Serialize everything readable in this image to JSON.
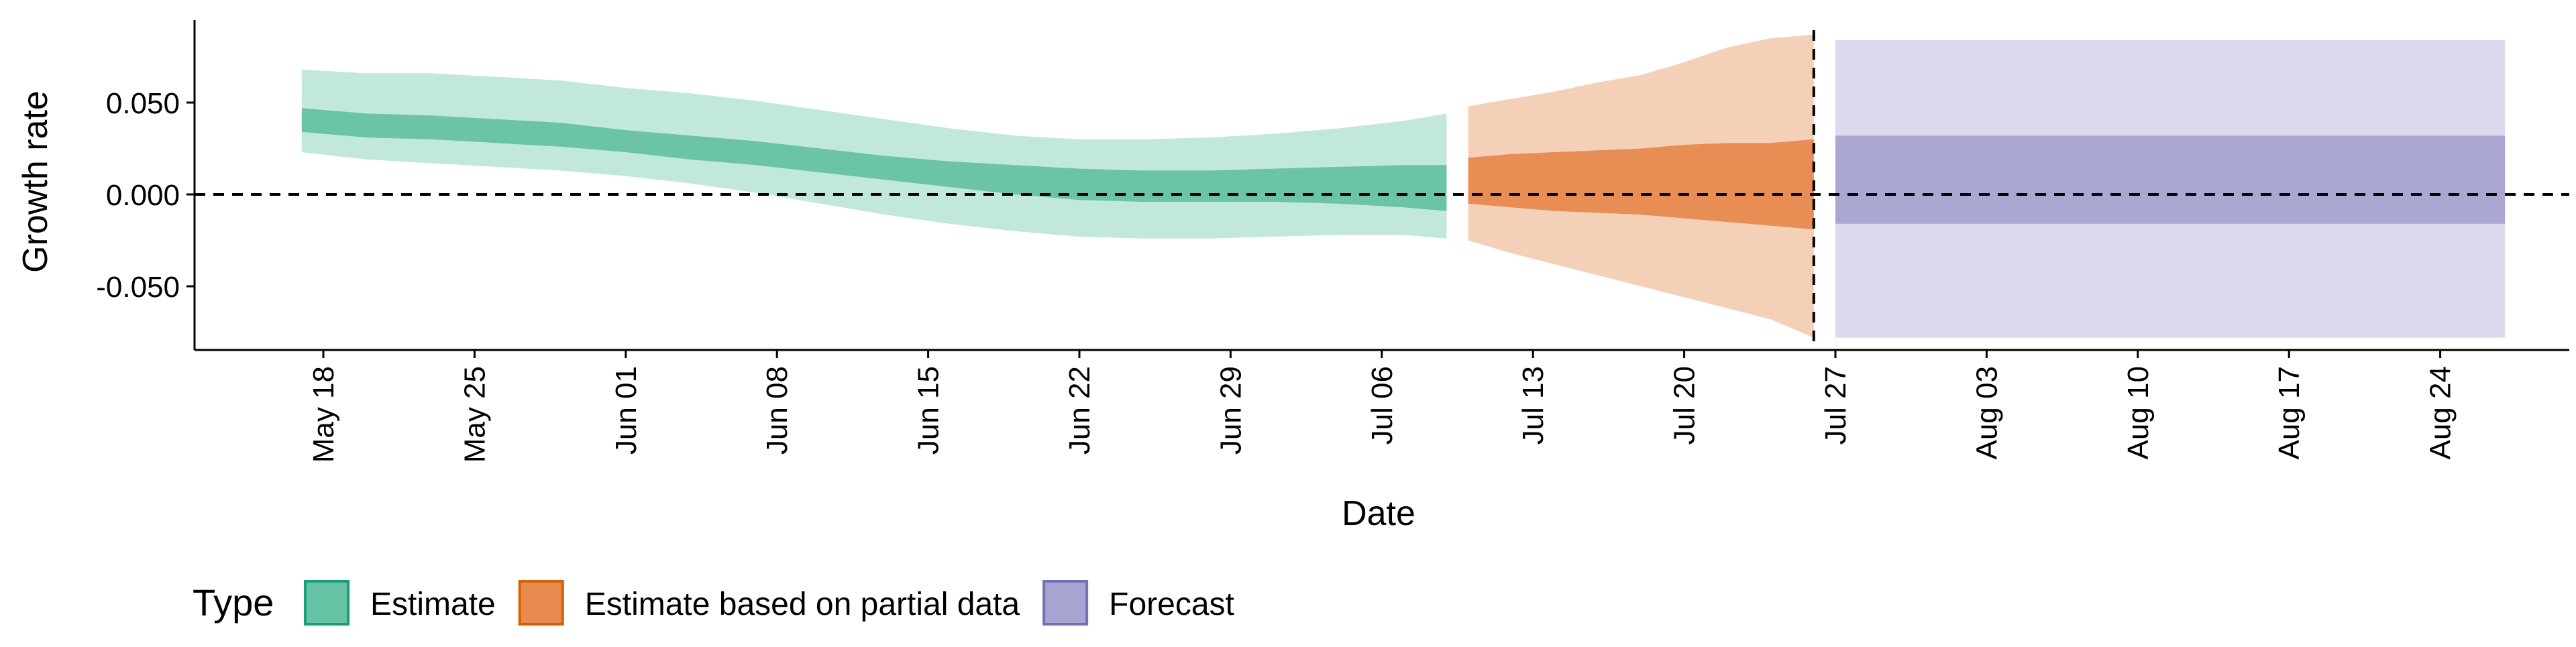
{
  "chart_data": {
    "type": "area",
    "xlabel": "Date",
    "ylabel": "Growth rate",
    "y_ticks": [
      -0.05,
      0.0,
      0.05
    ],
    "y_tick_labels": [
      "-0.050",
      "0.000",
      "0.050"
    ],
    "ylim": [
      -0.087,
      0.096
    ],
    "x_ticks": [
      "2020-05-18",
      "2020-05-25",
      "2020-06-01",
      "2020-06-08",
      "2020-06-15",
      "2020-06-22",
      "2020-06-29",
      "2020-07-06",
      "2020-07-13",
      "2020-07-20",
      "2020-07-27",
      "2020-08-03",
      "2020-08-10",
      "2020-08-17",
      "2020-08-24"
    ],
    "x_tick_labels": [
      "May 18",
      "May 25",
      "Jun 01",
      "Jun 08",
      "Jun 15",
      "Jun 22",
      "Jun 29",
      "Jul 06",
      "Jul 13",
      "Jul 20",
      "Jul 27",
      "Aug 03",
      "Aug 10",
      "Aug 17",
      "Aug 24"
    ],
    "xlim": [
      "2020-05-11",
      "2020-08-31"
    ],
    "reference_lines": {
      "horizontal": 0.0,
      "vertical": "2020-07-26"
    },
    "legend": {
      "title": "Type",
      "position": "bottom-left",
      "entries": [
        "Estimate",
        "Estimate based on partial data",
        "Forecast"
      ]
    },
    "grid": false,
    "series": [
      {
        "name": "Estimate",
        "color": "#66c2a5",
        "dates": [
          "2020-05-17",
          "2020-05-20",
          "2020-05-23",
          "2020-05-26",
          "2020-05-29",
          "2020-06-01",
          "2020-06-04",
          "2020-06-07",
          "2020-06-10",
          "2020-06-13",
          "2020-06-16",
          "2020-06-19",
          "2020-06-22",
          "2020-06-25",
          "2020-06-28",
          "2020-07-01",
          "2020-07-04",
          "2020-07-07",
          "2020-07-09"
        ],
        "outer_upper": [
          0.068,
          0.066,
          0.066,
          0.064,
          0.062,
          0.058,
          0.055,
          0.051,
          0.046,
          0.041,
          0.036,
          0.032,
          0.03,
          0.03,
          0.031,
          0.033,
          0.036,
          0.04,
          0.044
        ],
        "inner_upper": [
          0.047,
          0.044,
          0.043,
          0.041,
          0.039,
          0.035,
          0.032,
          0.029,
          0.025,
          0.021,
          0.018,
          0.016,
          0.014,
          0.013,
          0.013,
          0.014,
          0.015,
          0.016,
          0.016
        ],
        "inner_lower": [
          0.034,
          0.031,
          0.03,
          0.028,
          0.026,
          0.023,
          0.019,
          0.016,
          0.012,
          0.008,
          0.004,
          0.0,
          -0.003,
          -0.004,
          -0.004,
          -0.004,
          -0.005,
          -0.007,
          -0.009
        ],
        "outer_lower": [
          0.023,
          0.019,
          0.017,
          0.015,
          0.013,
          0.01,
          0.006,
          0.001,
          -0.005,
          -0.011,
          -0.016,
          -0.02,
          -0.023,
          -0.024,
          -0.024,
          -0.023,
          -0.022,
          -0.022,
          -0.024
        ]
      },
      {
        "name": "Estimate based on partial data",
        "color": "#e78a4f",
        "dates": [
          "2020-07-10",
          "2020-07-12",
          "2020-07-14",
          "2020-07-16",
          "2020-07-18",
          "2020-07-20",
          "2020-07-22",
          "2020-07-24",
          "2020-07-26"
        ],
        "outer_upper": [
          0.048,
          0.052,
          0.056,
          0.061,
          0.065,
          0.072,
          0.08,
          0.085,
          0.087
        ],
        "inner_upper": [
          0.02,
          0.022,
          0.023,
          0.024,
          0.025,
          0.027,
          0.028,
          0.028,
          0.03
        ],
        "inner_lower": [
          -0.005,
          -0.007,
          -0.009,
          -0.01,
          -0.011,
          -0.013,
          -0.015,
          -0.017,
          -0.019
        ],
        "outer_lower": [
          -0.025,
          -0.032,
          -0.038,
          -0.044,
          -0.05,
          -0.056,
          -0.062,
          -0.068,
          -0.078
        ]
      },
      {
        "name": "Forecast",
        "color": "#a8a4d2",
        "dates": [
          "2020-07-27",
          "2020-08-27"
        ],
        "outer_upper": [
          0.084,
          0.084
        ],
        "inner_upper": [
          0.032,
          0.032
        ],
        "inner_lower": [
          -0.016,
          -0.016
        ],
        "outer_lower": [
          -0.078,
          -0.078
        ]
      }
    ]
  }
}
